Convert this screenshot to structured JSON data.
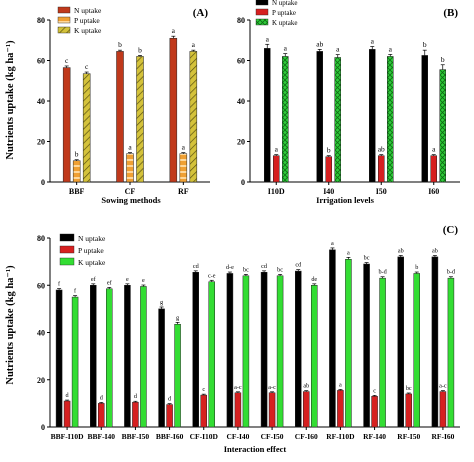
{
  "y_axis_label": "Nutrients uptake (kg ha⁻¹)",
  "chart_data": [
    {
      "type": "bar",
      "panel_label": "(A)",
      "xlabel": "Sowing methods",
      "ylabel": "Nutrients uptake (kg ha⁻¹)",
      "ylim": [
        0,
        80
      ],
      "yticks": [
        0,
        20,
        40,
        60,
        80
      ],
      "legend_position": "top-left",
      "categories": [
        "BBF",
        "CF",
        "RF"
      ],
      "series": [
        {
          "name": "N uptake",
          "color": "#c0391b",
          "pattern": "solid",
          "values": [
            56.5,
            64.5,
            71
          ],
          "errors": [
            0.8,
            0.6,
            1.0
          ],
          "letters": [
            "c",
            "b",
            "a"
          ]
        },
        {
          "name": "P uptake",
          "color": "#f0a033",
          "pattern": "dash",
          "values": [
            10.5,
            14,
            14
          ],
          "errors": [
            0.5,
            0.5,
            0.5
          ],
          "letters": [
            "b",
            "a",
            "a"
          ]
        },
        {
          "name": "K uptake",
          "color": "#d4c23a",
          "pattern": "hatch",
          "values": [
            53.5,
            62,
            64.5
          ],
          "errors": [
            0.8,
            0.5,
            0.6
          ],
          "letters": [
            "c",
            "b",
            "a"
          ]
        }
      ]
    },
    {
      "type": "bar",
      "panel_label": "(B)",
      "xlabel": "Irrigation levels",
      "ylim": [
        0,
        80
      ],
      "yticks": [
        0,
        20,
        40,
        60,
        80
      ],
      "legend_position": "top-left",
      "categories": [
        "I10D",
        "I40",
        "I50",
        "I60"
      ],
      "series": [
        {
          "name": "N uptake",
          "color": "#000000",
          "pattern": "solid",
          "values": [
            66,
            64.5,
            65.5,
            62.5
          ],
          "errors": [
            2.0,
            1.0,
            1.4,
            2.6
          ],
          "letters": [
            "a",
            "ab",
            "a",
            "b"
          ]
        },
        {
          "name": "P uptake",
          "color": "#d62020",
          "pattern": "solid",
          "values": [
            13,
            12.5,
            13,
            13
          ],
          "errors": [
            0.5,
            0.5,
            0.5,
            0.5
          ],
          "letters": [
            "a",
            "b",
            "ab",
            "a"
          ]
        },
        {
          "name": "K uptake",
          "color": "#2fcc3a",
          "pattern": "cross",
          "values": [
            62,
            61.5,
            62,
            55.5
          ],
          "errors": [
            1.4,
            1.4,
            1.0,
            2.4
          ],
          "letters": [
            "a",
            "a",
            "a",
            "b"
          ]
        }
      ]
    },
    {
      "type": "bar",
      "panel_label": "(C)",
      "xlabel": "Interaction effect",
      "ylabel": "Nutrients uptake (kg ha⁻¹)",
      "ylim": [
        0,
        80
      ],
      "yticks": [
        0,
        20,
        40,
        60,
        80
      ],
      "legend_position": "top-left",
      "categories": [
        "BBF-I10D",
        "BBF-I40",
        "BBF-I50",
        "BBF-I60",
        "CF-I10D",
        "CF-I40",
        "CF-I50",
        "CF-I60",
        "RF-I10D",
        "RF-I40",
        "RF-I50",
        "RF-I60"
      ],
      "series": [
        {
          "name": "N uptake",
          "color": "#000000",
          "pattern": "solid",
          "values": [
            58,
            60,
            60,
            50,
            65.5,
            65,
            65.5,
            66,
            75,
            69,
            72,
            72
          ],
          "errors": [
            0.6,
            0.6,
            0.6,
            0.8,
            0.6,
            0.6,
            0.6,
            0.6,
            0.8,
            0.6,
            0.6,
            0.6
          ],
          "letters": [
            "f",
            "ef",
            "e",
            "g",
            "cd",
            "d-e",
            "cd",
            "cd",
            "a",
            "bc",
            "ab",
            "ab"
          ]
        },
        {
          "name": "P uptake",
          "color": "#d62020",
          "pattern": "solid",
          "values": [
            11,
            10,
            10.5,
            9.5,
            13.5,
            14.5,
            14.5,
            15,
            15.5,
            13,
            14,
            15
          ],
          "errors": [
            0.4,
            0.4,
            0.4,
            0.4,
            0.4,
            0.4,
            0.4,
            0.4,
            0.4,
            0.4,
            0.4,
            0.4
          ],
          "letters": [
            "d",
            "d",
            "d",
            "d",
            "c",
            "a-c",
            "a-c",
            "ab",
            "a",
            "c",
            "bc",
            "a-c"
          ]
        },
        {
          "name": "K uptake",
          "color": "#33dd33",
          "pattern": "solid",
          "values": [
            55,
            58.5,
            59.5,
            43.5,
            61.5,
            64,
            64,
            60,
            71,
            63,
            65,
            63
          ],
          "errors": [
            0.6,
            0.6,
            0.6,
            0.8,
            0.6,
            0.6,
            0.6,
            0.6,
            0.8,
            0.6,
            0.6,
            0.6
          ],
          "letters": [
            "f",
            "ef",
            "e",
            "g",
            "c-e",
            "bc",
            "bc",
            "de",
            "a",
            "b-d",
            "b",
            "b-d"
          ]
        }
      ]
    }
  ]
}
